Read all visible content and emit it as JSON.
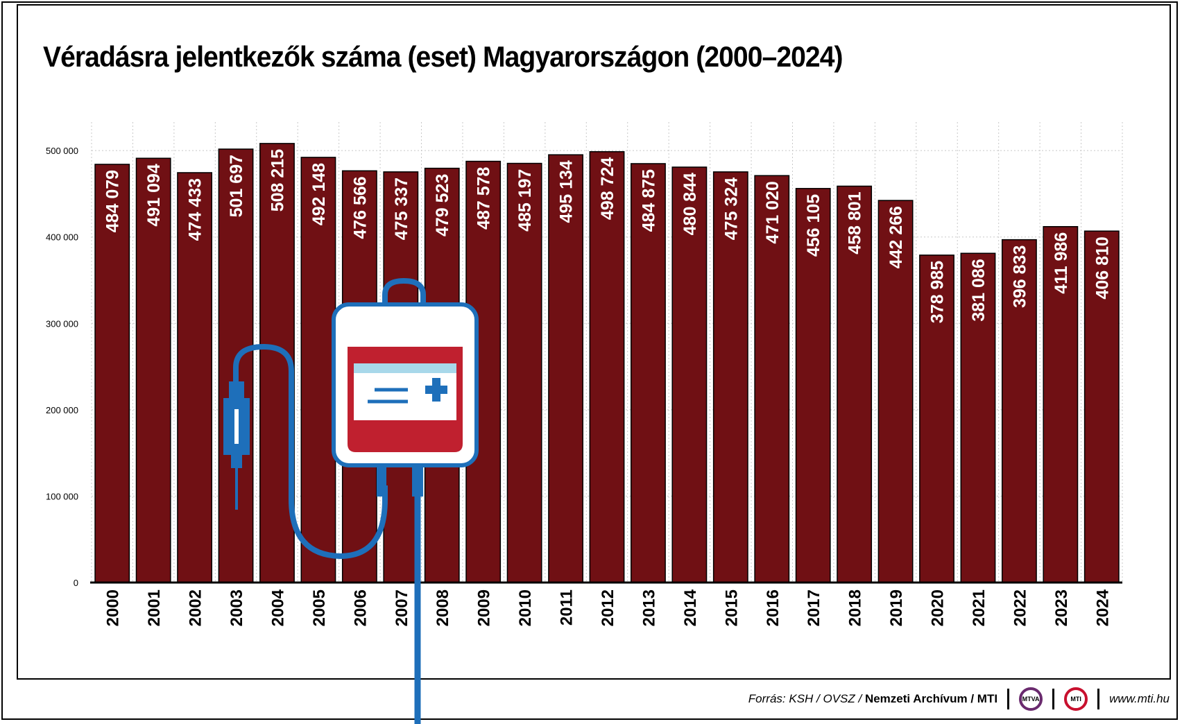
{
  "title": "Véradásra jelentkezők száma (eset) Magyarországon (2000–2024)",
  "footer": {
    "source_prefix": "Forrás: KSH / OVSZ / ",
    "source_bold": "Nemzeti Archívum / MTI",
    "logo_mtva": "MTVA",
    "logo_mti": "MTI",
    "website": "www.mti.hu"
  },
  "colors": {
    "bar": "#701014",
    "tube": "#1e6fba",
    "bag_red": "#c0202f",
    "label_band": "#a8d8ea"
  },
  "icons": [
    "blood-bag-icon",
    "syringe-icon",
    "plus-icon"
  ],
  "chart_data": {
    "type": "bar",
    "categories": [
      "2000",
      "2001",
      "2002",
      "2003",
      "2004",
      "2005",
      "2006",
      "2007",
      "2008",
      "2009",
      "2010",
      "2011",
      "2012",
      "2013",
      "2014",
      "2015",
      "2016",
      "2017",
      "2018",
      "2019",
      "2020",
      "2021",
      "2022",
      "2023",
      "2024"
    ],
    "values": [
      484079,
      491094,
      474433,
      501697,
      508215,
      492148,
      476566,
      475337,
      479523,
      487578,
      485197,
      495134,
      498724,
      484875,
      480844,
      475324,
      471020,
      456105,
      458801,
      442266,
      378985,
      381086,
      396833,
      411986,
      406810
    ],
    "value_labels": [
      "484 079",
      "491 094",
      "474 433",
      "501 697",
      "508 215",
      "492 148",
      "476 566",
      "475 337",
      "479 523",
      "487 578",
      "485 197",
      "495 134",
      "498 724",
      "484 875",
      "480 844",
      "475 324",
      "471 020",
      "456 105",
      "458 801",
      "442 266",
      "378 985",
      "381 086",
      "396 833",
      "411 986",
      "406 810"
    ],
    "yticks": [
      0,
      100000,
      200000,
      300000,
      400000,
      500000
    ],
    "ytick_labels": [
      "0",
      "100 000",
      "200 000",
      "300 000",
      "400 000",
      "500 000"
    ],
    "ylim": [
      0,
      533000
    ],
    "grid": true,
    "legend": "none"
  }
}
